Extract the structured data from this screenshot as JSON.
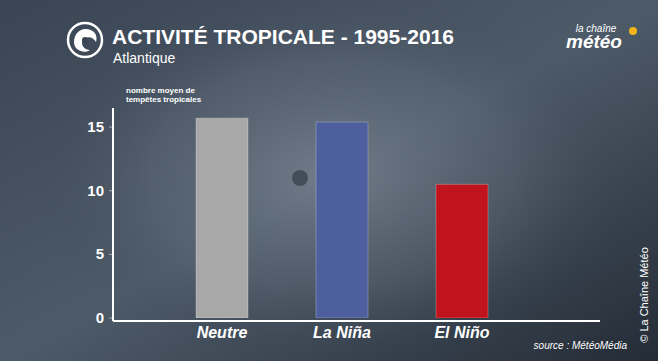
{
  "chart_data": {
    "type": "bar",
    "title": "ACTIVITÉ TROPICALE - 1995-2016",
    "subtitle": "Atlantique",
    "y_label": [
      "nombre moyen de",
      "tempêtes tropicales"
    ],
    "categories": [
      "Neutre",
      "La Niña",
      "El Niño"
    ],
    "values": [
      15.7,
      15.4,
      10.5
    ],
    "colors": [
      "#a8a8a8",
      "#4d5f9c",
      "#c0131c"
    ],
    "ylim": [
      0,
      16.5
    ],
    "yticks": [
      0,
      5,
      10,
      15
    ],
    "grid": false,
    "annotations": {
      "source": "source : MétéoMédia",
      "credit": "© La Chaîne Météo",
      "logo_top": "la chaîne",
      "logo_main": "météo"
    }
  }
}
